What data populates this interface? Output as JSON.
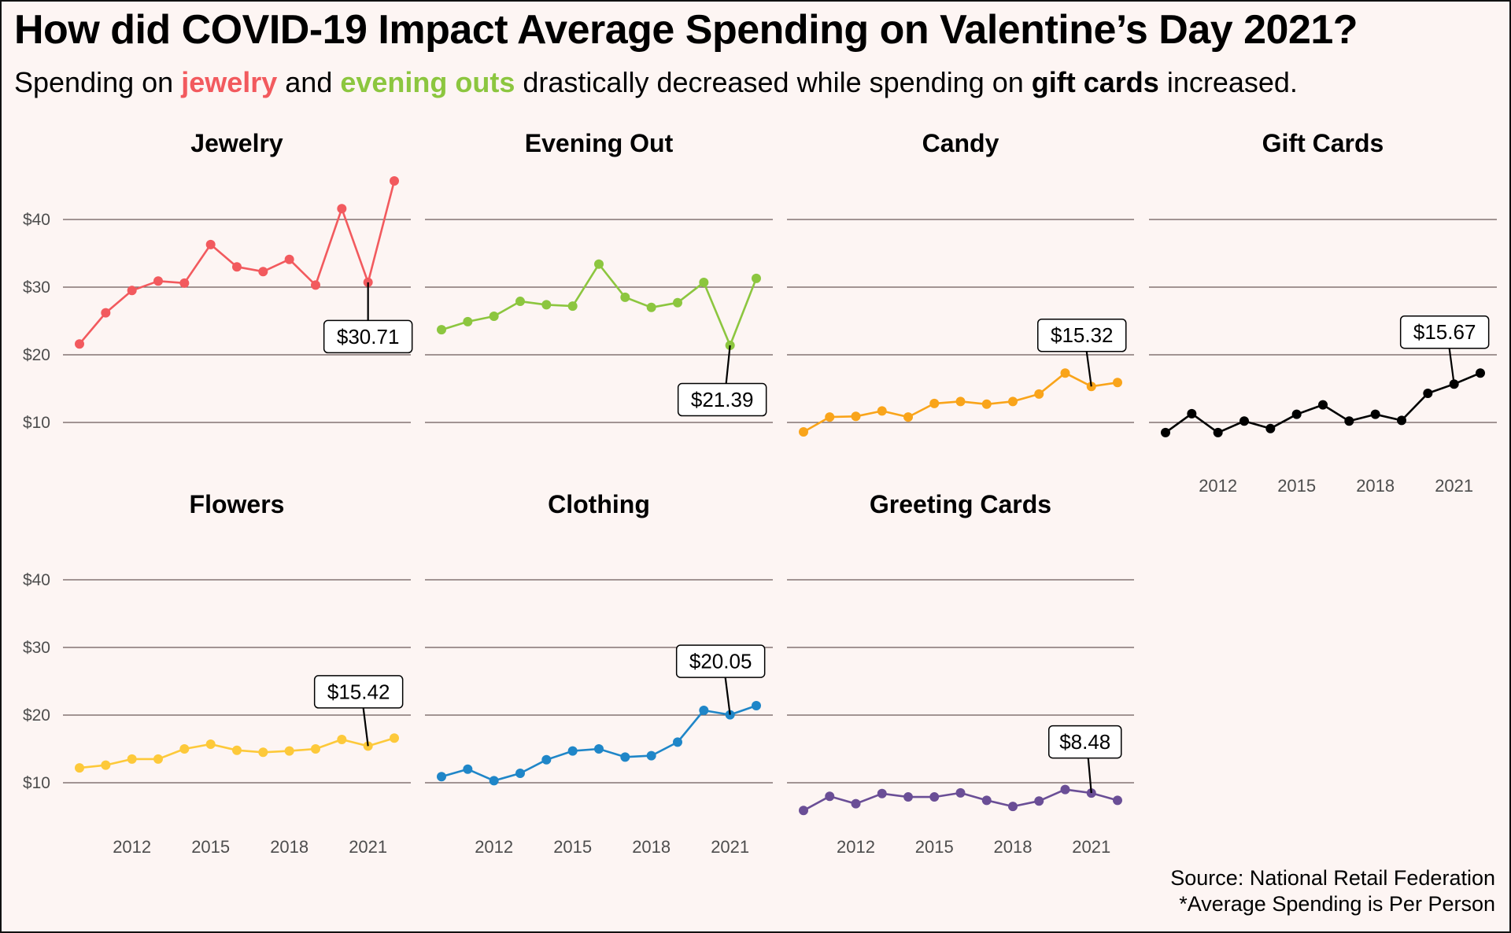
{
  "title": "How did COVID-19 Impact Average Spending on Valentine’s Day 2021?",
  "subtitle": {
    "parts": [
      {
        "text": "Spending on ",
        "style": "plain"
      },
      {
        "text": "jewelry",
        "style": "jewelry"
      },
      {
        "text": " and ",
        "style": "plain"
      },
      {
        "text": "evening outs",
        "style": "evening"
      },
      {
        "text": " drastically decreased while spending on ",
        "style": "plain"
      },
      {
        "text": "gift cards",
        "style": "gift"
      },
      {
        "text": " increased.",
        "style": "plain"
      }
    ]
  },
  "footer": {
    "source": "Source: National Retail Federation",
    "note": "*Average Spending is Per Person"
  },
  "chart_data": {
    "type": "line",
    "layout": "small-multiples",
    "x": [
      2010,
      2011,
      2012,
      2013,
      2014,
      2015,
      2016,
      2017,
      2018,
      2019,
      2020,
      2021,
      2022
    ],
    "xticks": [
      2012,
      2015,
      2018,
      2021
    ],
    "xtick_labels": [
      "2012",
      "2015",
      "2018",
      "2021"
    ],
    "yticks": [
      10,
      20,
      30,
      40
    ],
    "ytick_labels": [
      "$10",
      "$20",
      "$30",
      "$40"
    ],
    "ylim": [
      0,
      48
    ],
    "grid": "horizontal",
    "xlabel": "",
    "ylabel": "",
    "highlight_year": 2021,
    "series": [
      {
        "name": "Jewelry",
        "color": "#f25a5e",
        "annotation": "$30.71",
        "values": [
          21.6,
          26.2,
          29.5,
          30.9,
          30.6,
          36.3,
          33.0,
          32.3,
          34.1,
          30.3,
          41.6,
          30.71,
          45.7
        ]
      },
      {
        "name": "Evening Out",
        "color": "#8cc63f",
        "annotation": "$21.39",
        "values": [
          23.7,
          24.9,
          25.7,
          27.9,
          27.4,
          27.2,
          33.4,
          28.5,
          27.0,
          27.7,
          30.7,
          21.39,
          31.3
        ]
      },
      {
        "name": "Candy",
        "color": "#f9a41a",
        "annotation": "$15.32",
        "values": [
          8.6,
          10.8,
          10.9,
          11.7,
          10.8,
          12.8,
          13.1,
          12.7,
          13.1,
          14.2,
          17.3,
          15.32,
          15.9
        ]
      },
      {
        "name": "Gift Cards",
        "color": "#000000",
        "annotation": "$15.67",
        "values": [
          8.5,
          11.3,
          8.5,
          10.2,
          9.1,
          11.2,
          12.6,
          10.2,
          11.2,
          10.3,
          14.3,
          15.67,
          17.3
        ]
      },
      {
        "name": "Flowers",
        "color": "#fdc93a",
        "annotation": "$15.42",
        "values": [
          12.2,
          12.6,
          13.5,
          13.5,
          15.0,
          15.7,
          14.8,
          14.5,
          14.7,
          15.0,
          16.4,
          15.42,
          16.6
        ]
      },
      {
        "name": "Clothing",
        "color": "#1f86c8",
        "annotation": "$20.05",
        "values": [
          10.9,
          12.0,
          10.3,
          11.4,
          13.4,
          14.7,
          15.0,
          13.8,
          14.0,
          16.0,
          20.7,
          20.05,
          21.4
        ]
      },
      {
        "name": "Greeting Cards",
        "color": "#6a4e96",
        "annotation": "$8.48",
        "values": [
          5.9,
          8.0,
          6.9,
          8.4,
          7.9,
          7.9,
          8.5,
          7.4,
          6.5,
          7.3,
          9.0,
          8.48,
          7.4
        ]
      }
    ]
  }
}
